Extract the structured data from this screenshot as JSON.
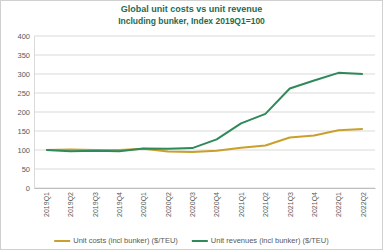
{
  "chart_data": {
    "type": "line",
    "title": "Global unit costs vs unit revenue",
    "subtitle": "Including bunker, Index 2019Q1=100",
    "categories": [
      "2019Q1",
      "2019Q2",
      "2019Q3",
      "2019Q4",
      "2020Q1",
      "2020Q2",
      "2020Q3",
      "2020Q4",
      "2021Q1",
      "2021Q2",
      "2021Q3",
      "2021Q4",
      "2022Q1",
      "2022Q2"
    ],
    "series": [
      {
        "name": "Unit costs (incl bunker) ($/TEU)",
        "color": "#c9a02c",
        "values": [
          100,
          101,
          100,
          100,
          103,
          96,
          95,
          98,
          106,
          112,
          133,
          138,
          152,
          155
        ]
      },
      {
        "name": "Unit revenues (incl bunker) ($/TEU)",
        "color": "#2f8a5a",
        "values": [
          100,
          97,
          98,
          97,
          104,
          103,
          105,
          128,
          170,
          195,
          262,
          283,
          303,
          300
        ]
      }
    ],
    "ylim": [
      0,
      400
    ],
    "yticks": [
      0,
      50,
      100,
      150,
      200,
      250,
      300,
      350,
      400
    ],
    "grid": true,
    "legend": "bottom"
  }
}
